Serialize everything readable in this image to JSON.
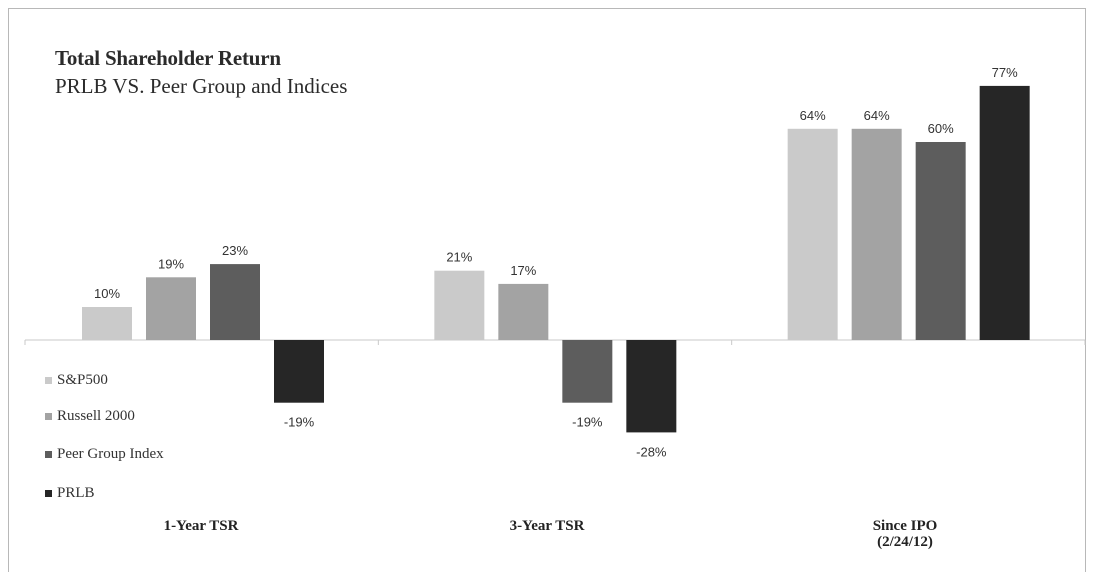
{
  "title": "Total Shareholder Return",
  "subtitle": "PRLB VS. Peer Group and Indices",
  "chart_data": {
    "type": "bar",
    "categories": [
      "1-Year TSR",
      "3-Year TSR",
      "Since IPO (2/24/12)"
    ],
    "category_lines": [
      [
        "1-Year TSR"
      ],
      [
        "3-Year TSR"
      ],
      [
        "Since IPO",
        "(2/24/12)"
      ]
    ],
    "series": [
      {
        "name": "S&P500",
        "values": [
          10,
          21,
          64
        ],
        "labels": [
          "10%",
          "21%",
          "64%"
        ],
        "color": "#cacaca"
      },
      {
        "name": "Russell 2000",
        "values": [
          19,
          17,
          64
        ],
        "labels": [
          "19%",
          "17%",
          "64%"
        ],
        "color": "#a3a3a3"
      },
      {
        "name": "Peer Group Index",
        "values": [
          23,
          -19,
          60
        ],
        "labels": [
          "23%",
          "-19%",
          "60%"
        ],
        "color": "#5d5d5d"
      },
      {
        "name": "PRLB",
        "values": [
          -19,
          -28,
          77
        ],
        "labels": [
          "-19%",
          "-28%",
          "77%"
        ],
        "color": "#262626"
      }
    ],
    "ylim": [
      -30,
      80
    ],
    "legend_position": "left",
    "grid": false
  }
}
